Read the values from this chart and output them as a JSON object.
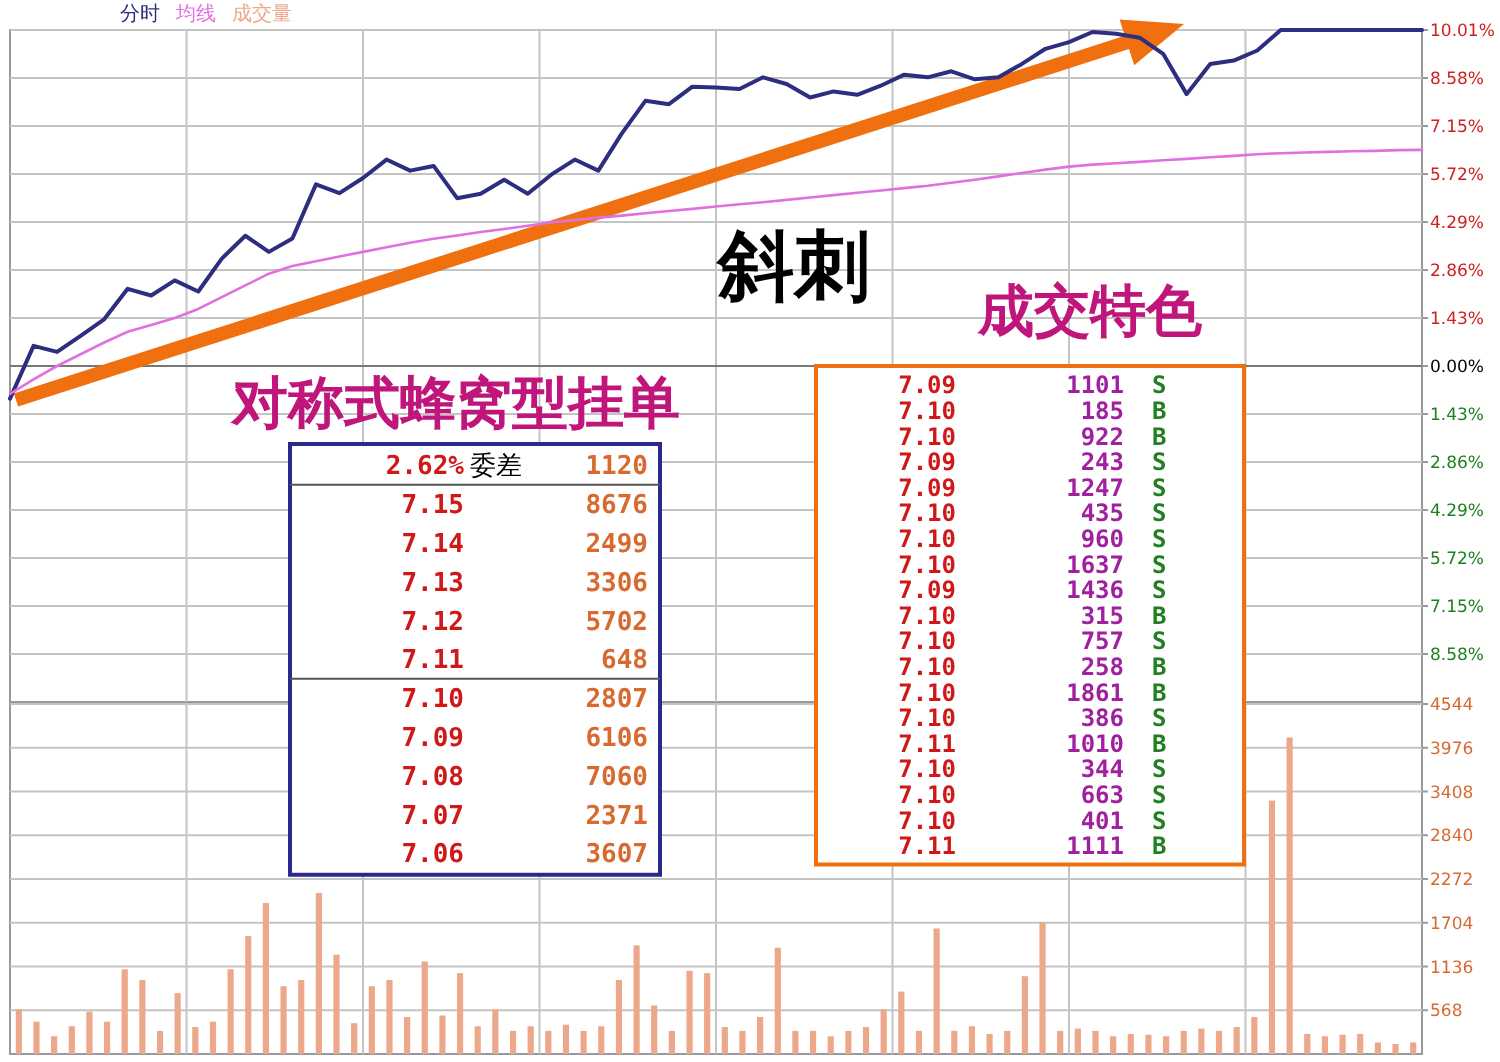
{
  "chart_data": [
    {
      "type": "line",
      "categories": [
        null,
        null,
        null,
        null,
        null,
        null,
        null,
        null,
        null,
        null,
        null,
        null,
        null,
        null,
        null,
        null,
        null,
        null,
        null,
        null,
        null,
        null,
        null,
        null,
        null,
        null,
        null,
        null,
        null,
        null,
        null,
        null,
        null,
        null,
        null,
        null,
        null,
        null,
        null,
        null,
        null,
        null,
        null,
        null,
        null,
        null,
        null,
        null,
        null,
        null,
        null,
        null,
        null,
        null,
        null,
        null,
        null,
        null,
        null,
        null,
        null
      ],
      "ylim": [
        -10.01,
        10.01
      ],
      "yticks": [
        {
          "value": 10.01,
          "label": "10.01%"
        },
        {
          "value": 8.58,
          "label": "8.58%"
        },
        {
          "value": 7.15,
          "label": "7.15%"
        },
        {
          "value": 5.72,
          "label": "5.72%"
        },
        {
          "value": 4.29,
          "label": "4.29%"
        },
        {
          "value": 2.86,
          "label": "2.86%"
        },
        {
          "value": 1.43,
          "label": "1.43%"
        },
        {
          "value": 0,
          "label": "0.00%"
        },
        {
          "value": -1.43,
          "label": "1.43%"
        },
        {
          "value": -2.86,
          "label": "2.86%"
        },
        {
          "value": -4.29,
          "label": "4.29%"
        },
        {
          "value": -5.72,
          "label": "5.72%"
        },
        {
          "value": -7.15,
          "label": "7.15%"
        },
        {
          "value": -8.58,
          "label": "8.58%"
        }
      ],
      "grid": true,
      "series": [
        {
          "name": "分时",
          "color": "#2e2e80",
          "values": [
            -0.97,
            0.6,
            0.42,
            0.9,
            1.39,
            2.3,
            2.1,
            2.55,
            2.22,
            3.2,
            3.88,
            3.4,
            3.8,
            5.41,
            5.15,
            5.6,
            6.15,
            5.82,
            5.96,
            5.0,
            5.13,
            5.55,
            5.13,
            5.7,
            6.15,
            5.82,
            6.93,
            7.9,
            7.8,
            8.32,
            8.3,
            8.25,
            8.6,
            8.4,
            8.0,
            8.18,
            8.08,
            8.35,
            8.68,
            8.6,
            8.78,
            8.54,
            8.6,
            9.0,
            9.45,
            9.65,
            9.95,
            9.9,
            9.78,
            9.3,
            8.1,
            9.0,
            9.1,
            9.4,
            10.01,
            10.01,
            10.01,
            10.01,
            10.01,
            10.01,
            10.01
          ]
        },
        {
          "name": "均线",
          "color": "#e070e0",
          "values": [
            -0.83,
            -0.4,
            0.0,
            0.35,
            0.7,
            1.02,
            1.22,
            1.43,
            1.7,
            2.05,
            2.4,
            2.75,
            2.98,
            3.12,
            3.26,
            3.4,
            3.54,
            3.67,
            3.79,
            3.89,
            3.99,
            4.08,
            4.18,
            4.28,
            4.35,
            4.42,
            4.48,
            4.55,
            4.62,
            4.68,
            4.75,
            4.82,
            4.88,
            4.95,
            5.02,
            5.09,
            5.16,
            5.23,
            5.3,
            5.37,
            5.46,
            5.55,
            5.65,
            5.75,
            5.85,
            5.94,
            6.0,
            6.04,
            6.08,
            6.13,
            6.17,
            6.22,
            6.26,
            6.31,
            6.34,
            6.36,
            6.38,
            6.4,
            6.41,
            6.43,
            6.44
          ]
        }
      ],
      "annotations": [
        "斜刺",
        "成交特色",
        "对称式蜂窝型挂单",
        "2.62% 委差 1120",
        "7.15 8676",
        "7.14 2499",
        "7.13 3306",
        "7.12 5702",
        "7.11 648",
        "7.10 2807",
        "7.09 6106",
        "7.08 7060",
        "7.07 2371",
        "7.06 3607",
        "7.09 1101 S",
        "7.10 185 B",
        "7.10 922 B",
        "7.09 243 S",
        "7.09 1247 S",
        "7.10 435 S",
        "7.10 960 S",
        "7.10 1637 S",
        "7.09 1436 S",
        "7.10 315 B",
        "7.10 757 S",
        "7.10 258 B",
        "7.10 1861 B",
        "7.10 386 S",
        "7.11 1010 B",
        "7.10 344 S",
        "7.10 663 S",
        "7.10 401 S",
        "7.11 1111 B"
      ]
    },
    {
      "type": "bar",
      "categories": [
        null,
        null,
        null,
        null,
        null,
        null,
        null,
        null,
        null,
        null,
        null,
        null,
        null,
        null,
        null,
        null,
        null,
        null,
        null,
        null,
        null,
        null,
        null,
        null,
        null,
        null,
        null,
        null,
        null,
        null,
        null,
        null,
        null,
        null,
        null,
        null,
        null,
        null,
        null,
        null,
        null,
        null,
        null,
        null,
        null,
        null,
        null,
        null,
        null,
        null,
        null,
        null,
        null,
        null,
        null,
        null,
        null,
        null,
        null,
        null,
        null,
        null,
        null,
        null,
        null,
        null,
        null,
        null,
        null,
        null,
        null,
        null,
        null,
        null,
        null,
        null,
        null,
        null,
        null,
        null
      ],
      "ylim": [
        0,
        4544
      ],
      "yticks": [
        568,
        1136,
        1704,
        2272,
        2840,
        3408,
        3976,
        4544
      ],
      "grid": true,
      "series": [
        {
          "name": "成交量",
          "color": "#eba88a",
          "values": [
            580,
            420,
            230,
            360,
            550,
            420,
            1100,
            960,
            300,
            790,
            350,
            420,
            1100,
            1530,
            1960,
            880,
            960,
            2090,
            1290,
            400,
            880,
            960,
            480,
            1200,
            500,
            1050,
            360,
            580,
            300,
            360,
            300,
            380,
            300,
            360,
            960,
            1410,
            630,
            300,
            1080,
            1050,
            350,
            300,
            480,
            1380,
            300,
            300,
            230,
            300,
            350,
            580,
            810,
            300,
            1630,
            300,
            360,
            260,
            300,
            1010,
            1710,
            300,
            330,
            300,
            230,
            260,
            250,
            230,
            300,
            330,
            300,
            350,
            480,
            3290,
            4110,
            260,
            230,
            250,
            260,
            150,
            130,
            150
          ]
        }
      ]
    }
  ]
}
